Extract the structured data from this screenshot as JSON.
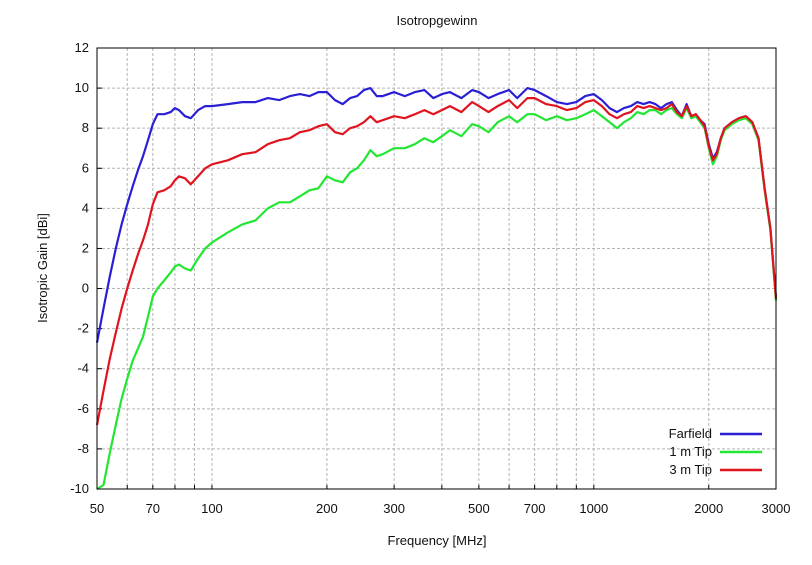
{
  "chart_data": {
    "type": "line",
    "title": "Isotropgewinn",
    "xlabel": "Frequency [MHz]",
    "ylabel": "Isotropic Gain [dBi]",
    "xscale": "log",
    "xlim": [
      50,
      3000
    ],
    "ylim": [
      -10,
      12
    ],
    "x_ticks": [
      50,
      70,
      100,
      200,
      300,
      500,
      700,
      1000,
      2000,
      3000
    ],
    "x_tick_labels": [
      "50",
      "70",
      "100",
      "200",
      "300",
      "500",
      "700",
      "1000",
      "2000",
      "3000"
    ],
    "y_ticks": [
      -10,
      -8,
      -6,
      -4,
      -2,
      0,
      2,
      4,
      6,
      8,
      10,
      12
    ],
    "y_tick_labels": [
      "-10",
      "-8",
      "-6",
      "-4",
      "-2",
      "0",
      "2",
      "4",
      "6",
      "8",
      "10",
      "12"
    ],
    "grid": true,
    "legend_position": "bottom-right",
    "series": [
      {
        "name": "Farfield",
        "color": "#2a1fd6",
        "points": [
          [
            50,
            -2.7
          ],
          [
            52,
            -1
          ],
          [
            54,
            0.6
          ],
          [
            56,
            2
          ],
          [
            58,
            3.2
          ],
          [
            60,
            4.2
          ],
          [
            62,
            5.1
          ],
          [
            64,
            5.9
          ],
          [
            66,
            6.6
          ],
          [
            68,
            7.4
          ],
          [
            70,
            8.2
          ],
          [
            72,
            8.7
          ],
          [
            75,
            8.7
          ],
          [
            78,
            8.8
          ],
          [
            80,
            9
          ],
          [
            82,
            8.9
          ],
          [
            85,
            8.6
          ],
          [
            88,
            8.5
          ],
          [
            92,
            8.9
          ],
          [
            96,
            9.1
          ],
          [
            100,
            9.1
          ],
          [
            110,
            9.2
          ],
          [
            120,
            9.3
          ],
          [
            130,
            9.3
          ],
          [
            140,
            9.5
          ],
          [
            150,
            9.4
          ],
          [
            160,
            9.6
          ],
          [
            170,
            9.7
          ],
          [
            180,
            9.6
          ],
          [
            190,
            9.8
          ],
          [
            200,
            9.8
          ],
          [
            210,
            9.4
          ],
          [
            220,
            9.2
          ],
          [
            230,
            9.5
          ],
          [
            240,
            9.6
          ],
          [
            250,
            9.9
          ],
          [
            260,
            10
          ],
          [
            270,
            9.6
          ],
          [
            280,
            9.6
          ],
          [
            300,
            9.8
          ],
          [
            320,
            9.6
          ],
          [
            340,
            9.8
          ],
          [
            360,
            9.9
          ],
          [
            380,
            9.5
          ],
          [
            400,
            9.7
          ],
          [
            420,
            9.8
          ],
          [
            450,
            9.5
          ],
          [
            480,
            9.9
          ],
          [
            500,
            9.8
          ],
          [
            530,
            9.5
          ],
          [
            560,
            9.7
          ],
          [
            600,
            9.9
          ],
          [
            630,
            9.5
          ],
          [
            670,
            10
          ],
          [
            700,
            9.9
          ],
          [
            750,
            9.6
          ],
          [
            800,
            9.3
          ],
          [
            850,
            9.2
          ],
          [
            900,
            9.3
          ],
          [
            950,
            9.6
          ],
          [
            1000,
            9.7
          ],
          [
            1050,
            9.4
          ],
          [
            1100,
            9
          ],
          [
            1150,
            8.8
          ],
          [
            1200,
            9
          ],
          [
            1250,
            9.1
          ],
          [
            1300,
            9.3
          ],
          [
            1350,
            9.2
          ],
          [
            1400,
            9.3
          ],
          [
            1450,
            9.2
          ],
          [
            1500,
            9
          ],
          [
            1550,
            9.2
          ],
          [
            1600,
            9.3
          ],
          [
            1650,
            8.9
          ],
          [
            1700,
            8.6
          ],
          [
            1750,
            9.2
          ],
          [
            1800,
            8.6
          ],
          [
            1850,
            8.7
          ],
          [
            1900,
            8.4
          ],
          [
            1950,
            8.2
          ],
          [
            2000,
            7.2
          ],
          [
            2050,
            6.5
          ],
          [
            2100,
            6.8
          ],
          [
            2150,
            7.5
          ],
          [
            2200,
            8
          ],
          [
            2300,
            8.3
          ],
          [
            2400,
            8.5
          ],
          [
            2500,
            8.6
          ],
          [
            2600,
            8.3
          ],
          [
            2700,
            7.5
          ],
          [
            2800,
            5
          ],
          [
            2900,
            3
          ],
          [
            3000,
            -0.5
          ]
        ]
      },
      {
        "name": "1 m Tip",
        "color": "#22e632",
        "points": [
          [
            50,
            -12
          ],
          [
            52,
            -9.8
          ],
          [
            54,
            -8.2
          ],
          [
            56,
            -6.8
          ],
          [
            58,
            -5.5
          ],
          [
            60,
            -4.5
          ],
          [
            62,
            -3.6
          ],
          [
            64,
            -3
          ],
          [
            66,
            -2.4
          ],
          [
            68,
            -1.4
          ],
          [
            70,
            -0.4
          ],
          [
            72,
            0
          ],
          [
            75,
            0.4
          ],
          [
            78,
            0.8
          ],
          [
            80,
            1.1
          ],
          [
            82,
            1.2
          ],
          [
            85,
            1
          ],
          [
            88,
            0.9
          ],
          [
            92,
            1.5
          ],
          [
            96,
            2
          ],
          [
            100,
            2.3
          ],
          [
            110,
            2.8
          ],
          [
            120,
            3.2
          ],
          [
            130,
            3.4
          ],
          [
            140,
            4
          ],
          [
            150,
            4.3
          ],
          [
            160,
            4.3
          ],
          [
            170,
            4.6
          ],
          [
            180,
            4.9
          ],
          [
            190,
            5
          ],
          [
            200,
            5.6
          ],
          [
            210,
            5.4
          ],
          [
            220,
            5.3
          ],
          [
            230,
            5.8
          ],
          [
            240,
            6
          ],
          [
            250,
            6.4
          ],
          [
            260,
            6.9
          ],
          [
            270,
            6.6
          ],
          [
            280,
            6.7
          ],
          [
            300,
            7
          ],
          [
            320,
            7
          ],
          [
            340,
            7.2
          ],
          [
            360,
            7.5
          ],
          [
            380,
            7.3
          ],
          [
            400,
            7.6
          ],
          [
            420,
            7.9
          ],
          [
            450,
            7.6
          ],
          [
            480,
            8.2
          ],
          [
            500,
            8.1
          ],
          [
            530,
            7.8
          ],
          [
            560,
            8.3
          ],
          [
            600,
            8.6
          ],
          [
            630,
            8.3
          ],
          [
            670,
            8.7
          ],
          [
            700,
            8.7
          ],
          [
            750,
            8.4
          ],
          [
            800,
            8.6
          ],
          [
            850,
            8.4
          ],
          [
            900,
            8.5
          ],
          [
            950,
            8.7
          ],
          [
            1000,
            8.9
          ],
          [
            1050,
            8.6
          ],
          [
            1100,
            8.3
          ],
          [
            1150,
            8
          ],
          [
            1200,
            8.3
          ],
          [
            1250,
            8.5
          ],
          [
            1300,
            8.8
          ],
          [
            1350,
            8.7
          ],
          [
            1400,
            8.9
          ],
          [
            1450,
            8.9
          ],
          [
            1500,
            8.7
          ],
          [
            1550,
            8.9
          ],
          [
            1600,
            9
          ],
          [
            1650,
            8.7
          ],
          [
            1700,
            8.5
          ],
          [
            1750,
            9
          ],
          [
            1800,
            8.5
          ],
          [
            1850,
            8.6
          ],
          [
            1900,
            8.3
          ],
          [
            1950,
            8
          ],
          [
            2000,
            7
          ],
          [
            2050,
            6.2
          ],
          [
            2100,
            6.6
          ],
          [
            2150,
            7.4
          ],
          [
            2200,
            7.9
          ],
          [
            2300,
            8.2
          ],
          [
            2400,
            8.4
          ],
          [
            2500,
            8.5
          ],
          [
            2600,
            8.2
          ],
          [
            2700,
            7.4
          ],
          [
            2800,
            4.9
          ],
          [
            2900,
            2.9
          ],
          [
            3000,
            -0.6
          ]
        ]
      },
      {
        "name": "3 m Tip",
        "color": "#e0141e",
        "points": [
          [
            50,
            -6.8
          ],
          [
            52,
            -5.1
          ],
          [
            54,
            -3.5
          ],
          [
            56,
            -2.2
          ],
          [
            58,
            -1
          ],
          [
            60,
            0
          ],
          [
            62,
            0.9
          ],
          [
            64,
            1.7
          ],
          [
            66,
            2.4
          ],
          [
            68,
            3.2
          ],
          [
            70,
            4.2
          ],
          [
            72,
            4.8
          ],
          [
            75,
            4.9
          ],
          [
            78,
            5.1
          ],
          [
            80,
            5.4
          ],
          [
            82,
            5.6
          ],
          [
            85,
            5.5
          ],
          [
            88,
            5.2
          ],
          [
            92,
            5.6
          ],
          [
            96,
            6
          ],
          [
            100,
            6.2
          ],
          [
            110,
            6.4
          ],
          [
            120,
            6.7
          ],
          [
            130,
            6.8
          ],
          [
            140,
            7.2
          ],
          [
            150,
            7.4
          ],
          [
            160,
            7.5
          ],
          [
            170,
            7.8
          ],
          [
            180,
            7.9
          ],
          [
            190,
            8.1
          ],
          [
            200,
            8.2
          ],
          [
            210,
            7.8
          ],
          [
            220,
            7.7
          ],
          [
            230,
            8
          ],
          [
            240,
            8.1
          ],
          [
            250,
            8.3
          ],
          [
            260,
            8.6
          ],
          [
            270,
            8.3
          ],
          [
            280,
            8.4
          ],
          [
            300,
            8.6
          ],
          [
            320,
            8.5
          ],
          [
            340,
            8.7
          ],
          [
            360,
            8.9
          ],
          [
            380,
            8.7
          ],
          [
            400,
            8.9
          ],
          [
            420,
            9.1
          ],
          [
            450,
            8.8
          ],
          [
            480,
            9.3
          ],
          [
            500,
            9.1
          ],
          [
            530,
            8.8
          ],
          [
            560,
            9.1
          ],
          [
            600,
            9.4
          ],
          [
            630,
            9
          ],
          [
            670,
            9.5
          ],
          [
            700,
            9.5
          ],
          [
            750,
            9.2
          ],
          [
            800,
            9.1
          ],
          [
            850,
            8.9
          ],
          [
            900,
            9
          ],
          [
            950,
            9.3
          ],
          [
            1000,
            9.4
          ],
          [
            1050,
            9.1
          ],
          [
            1100,
            8.7
          ],
          [
            1150,
            8.5
          ],
          [
            1200,
            8.7
          ],
          [
            1250,
            8.8
          ],
          [
            1300,
            9.1
          ],
          [
            1350,
            9
          ],
          [
            1400,
            9.1
          ],
          [
            1450,
            9
          ],
          [
            1500,
            8.9
          ],
          [
            1550,
            9
          ],
          [
            1600,
            9.2
          ],
          [
            1650,
            8.8
          ],
          [
            1700,
            8.6
          ],
          [
            1750,
            9.1
          ],
          [
            1800,
            8.6
          ],
          [
            1850,
            8.7
          ],
          [
            1900,
            8.4
          ],
          [
            1950,
            8.1
          ],
          [
            2000,
            7.1
          ],
          [
            2050,
            6.4
          ],
          [
            2100,
            6.7
          ],
          [
            2150,
            7.5
          ],
          [
            2200,
            8
          ],
          [
            2300,
            8.3
          ],
          [
            2400,
            8.5
          ],
          [
            2500,
            8.6
          ],
          [
            2600,
            8.3
          ],
          [
            2700,
            7.5
          ],
          [
            2800,
            5
          ],
          [
            2900,
            3
          ],
          [
            3000,
            -0.5
          ]
        ]
      }
    ]
  }
}
